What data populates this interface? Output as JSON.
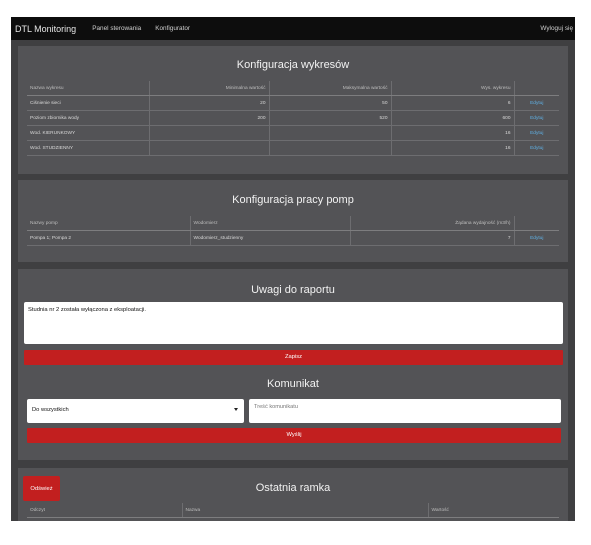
{
  "nav": {
    "brand": "DTL Monitoring",
    "links": [
      "Panel sterowania",
      "Konfigurator"
    ],
    "logout": "Wyloguj się"
  },
  "charts_config": {
    "title": "Konfiguracja wykresów",
    "headers": [
      "Nazwa wykresu",
      "Minimalna wartość",
      "Maksymalna wartość",
      "Wys. wykresu",
      ""
    ],
    "rows": [
      {
        "name": "Ciśnienie sieci",
        "min": "20",
        "max": "50",
        "height": "6",
        "action": "Edytuj"
      },
      {
        "name": "Poziom zbiornika wody",
        "min": "200",
        "max": "520",
        "height": "600",
        "action": "Edytuj"
      },
      {
        "name": "Wod. KIERUNKOWY",
        "min": "",
        "max": "",
        "height": "16",
        "action": "Edytuj"
      },
      {
        "name": "Wod. STUDZIENNY",
        "min": "",
        "max": "",
        "height": "16",
        "action": "Edytuj"
      }
    ]
  },
  "pumps_config": {
    "title": "Konfiguracja pracy pomp",
    "headers": [
      "Nazwy pomp",
      "Wodomierz",
      "Żądana wydajność (m3/h)",
      ""
    ],
    "rows": [
      {
        "pumps": "Pompa 1; Pompa 2",
        "meter": "Wodomierz_studzienny",
        "flow": "7",
        "action": "Edytuj"
      }
    ]
  },
  "report": {
    "title": "Uwagi do raportu",
    "text": "Studnia nr 2 została wyłączona z eksploatacji.",
    "save": "Zapisz"
  },
  "message": {
    "title": "Komunikat",
    "select_value": "Do wszystkich",
    "placeholder": "Treść komunikatu",
    "send": "Wyślij"
  },
  "last_frame": {
    "title": "Ostatnia ramka",
    "refresh": "Odśwież",
    "headers": [
      "Odczyt",
      "Nazwa",
      "Wartość"
    ]
  },
  "colors": {
    "accent_red": "#c21f1f",
    "link_blue": "#5fb1e6",
    "panel": "#535356",
    "background": "#3f3f41"
  }
}
